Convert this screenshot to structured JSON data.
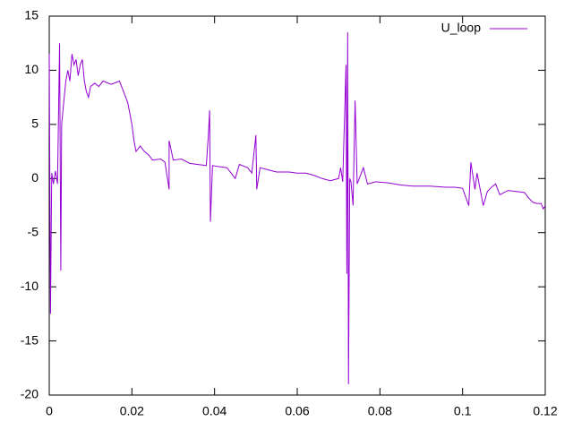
{
  "chart_data": {
    "type": "line",
    "x": [
      0,
      0.0003,
      0.0006,
      0.001,
      0.0015,
      0.002,
      0.0025,
      0.0028,
      0.003,
      0.0035,
      0.004,
      0.0045,
      0.005,
      0.0055,
      0.006,
      0.0065,
      0.007,
      0.0075,
      0.008,
      0.0085,
      0.009,
      0.0095,
      0.01,
      0.011,
      0.012,
      0.013,
      0.015,
      0.017,
      0.018,
      0.019,
      0.02,
      0.0205,
      0.021,
      0.022,
      0.023,
      0.024,
      0.025,
      0.027,
      0.028,
      0.029,
      0.029,
      0.03,
      0.032,
      0.034,
      0.036,
      0.038,
      0.0385,
      0.0388,
      0.039,
      0.0395,
      0.041,
      0.043,
      0.045,
      0.046,
      0.048,
      0.049,
      0.05,
      0.0502,
      0.051,
      0.053,
      0.055,
      0.058,
      0.06,
      0.062,
      0.064,
      0.066,
      0.068,
      0.07,
      0.0705,
      0.071,
      0.0718,
      0.072,
      0.0722,
      0.0724,
      0.0727,
      0.073,
      0.0735,
      0.074,
      0.0745,
      0.076,
      0.077,
      0.079,
      0.082,
      0.085,
      0.088,
      0.092,
      0.096,
      0.098,
      0.1,
      0.1015,
      0.102,
      0.103,
      0.1035,
      0.105,
      0.106,
      0.107,
      0.108,
      0.109,
      0.111,
      0.113,
      0.115,
      0.116,
      0.117,
      0.118,
      0.119,
      0.1195,
      0.12
    ],
    "series": [
      {
        "name": "U_loop",
        "color": "#9400d3",
        "values": [
          11.5,
          -12.5,
          0.5,
          -0.5,
          0.7,
          -0.5,
          12.5,
          -8.5,
          5,
          7,
          9,
          10,
          9,
          11.5,
          10.5,
          11,
          9.5,
          10.5,
          11,
          9,
          8,
          7.5,
          8.5,
          8.8,
          8.5,
          9,
          8.7,
          9,
          8,
          7,
          5,
          3.5,
          2.5,
          3,
          2.5,
          2.2,
          1.7,
          1.8,
          1.5,
          -1,
          3.5,
          1.7,
          1.8,
          1.4,
          1.3,
          1.2,
          4,
          6.3,
          -4,
          1.2,
          1.1,
          1,
          0,
          1.3,
          1,
          0.5,
          4,
          -1,
          1,
          0.8,
          0.6,
          0.6,
          0.5,
          0.5,
          0.3,
          0,
          -0.2,
          0,
          1,
          -0.3,
          10.5,
          -8.8,
          13.5,
          -19,
          0,
          -0.3,
          -2.5,
          7.2,
          -0.5,
          1,
          -0.5,
          -0.3,
          -0.4,
          -0.6,
          -0.7,
          -0.7,
          -0.8,
          -0.8,
          -0.9,
          -2.5,
          1.5,
          -1,
          0.5,
          -2.5,
          -1.2,
          -0.8,
          -0.5,
          -1.5,
          -1.1,
          -1.2,
          -1.3,
          -1.8,
          -2.2,
          -2.3,
          -2.3,
          -2.8,
          -2.5
        ]
      }
    ],
    "xlim": [
      0,
      0.12
    ],
    "xticks": [
      0,
      0.02,
      0.04,
      0.06,
      0.08,
      0.1,
      0.12
    ],
    "ylim": [
      -20,
      15
    ],
    "yticks": [
      -20,
      -15,
      -10,
      -5,
      0,
      5,
      10,
      15
    ],
    "grid": false,
    "legend": "top-right"
  }
}
